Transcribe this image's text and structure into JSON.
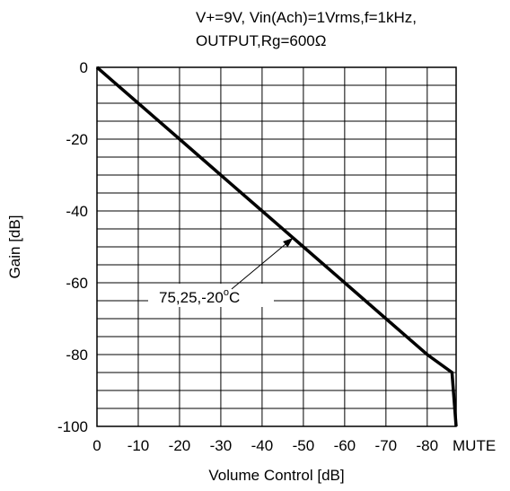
{
  "chart_data": {
    "type": "line",
    "title_lines": [
      "V+=9V, Vin(Ach)=1Vrms,f=1kHz,",
      "OUTPUT,Rg=600Ω"
    ],
    "xlabel": "Volume Control [dB]",
    "ylabel": "Gain  [dB]",
    "xlim": [
      0,
      -87
    ],
    "ylim": [
      -100,
      0
    ],
    "x_ticks": [
      {
        "value": 0,
        "label": "0"
      },
      {
        "value": -10,
        "label": "-10"
      },
      {
        "value": -20,
        "label": "-20"
      },
      {
        "value": -30,
        "label": "-30"
      },
      {
        "value": -40,
        "label": "-40"
      },
      {
        "value": -50,
        "label": "-50"
      },
      {
        "value": -60,
        "label": "-60"
      },
      {
        "value": -70,
        "label": "-70"
      },
      {
        "value": -80,
        "label": "-80"
      },
      {
        "value": -87,
        "label": "MUTE"
      }
    ],
    "y_ticks": [
      {
        "value": 0,
        "label": "0"
      },
      {
        "value": -20,
        "label": "-20"
      },
      {
        "value": -40,
        "label": "-40"
      },
      {
        "value": -60,
        "label": "-60"
      },
      {
        "value": -80,
        "label": "-80"
      },
      {
        "value": -100,
        "label": "-100"
      }
    ],
    "grid": true,
    "series": [
      {
        "x": [
          0,
          -10,
          -20,
          -30,
          -40,
          -50,
          -60,
          -70,
          -80,
          -86,
          -87
        ],
        "y": [
          0,
          -10,
          -20,
          -30,
          -40,
          -50,
          -60,
          -70,
          -80,
          -85,
          -100
        ]
      }
    ],
    "annotation": {
      "text_main": "75,25,-20",
      "text_sup": "o",
      "text_end": "C",
      "points_to": {
        "x": -47.5,
        "y": -47.5
      }
    }
  }
}
